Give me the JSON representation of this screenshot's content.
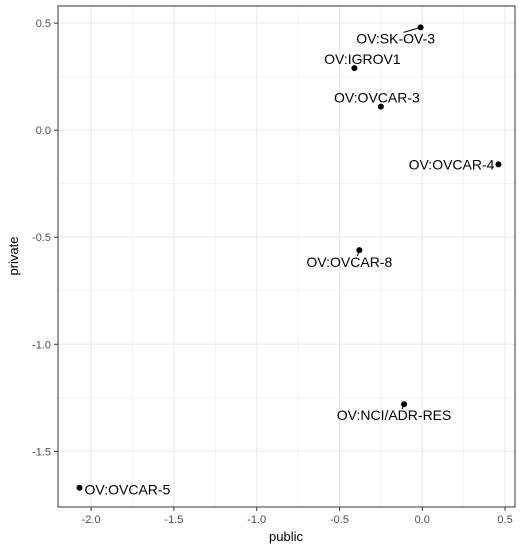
{
  "chart_data": {
    "type": "scatter",
    "title": "",
    "xlabel": "public",
    "ylabel": "private",
    "xlim": [
      -2.2,
      0.56
    ],
    "ylim": [
      -1.76,
      0.58
    ],
    "x_ticks": [
      -2.0,
      -1.5,
      -1.0,
      -0.5,
      0.0,
      0.5
    ],
    "x_tick_labels": [
      "-2.0",
      "-1.5",
      "-1.0",
      "-0.5",
      "0.0",
      "0.5"
    ],
    "y_ticks": [
      0.5,
      0.0,
      -0.5,
      -1.0,
      -1.5
    ],
    "y_tick_labels": [
      "0.5",
      "0.0",
      "-0.5",
      "-1.0",
      "-1.5"
    ],
    "grid": true,
    "points": [
      {
        "label": "OV:SK-OV-3",
        "x": -0.01,
        "y": 0.48
      },
      {
        "label": "OV:IGROV1",
        "x": -0.41,
        "y": 0.29
      },
      {
        "label": "OV:OVCAR-3",
        "x": -0.25,
        "y": 0.11
      },
      {
        "label": "OV:OVCAR-4",
        "x": 0.46,
        "y": -0.16
      },
      {
        "label": "OV:OVCAR-8",
        "x": -0.38,
        "y": -0.56
      },
      {
        "label": "OV:NCI/ADR-RES",
        "x": -0.11,
        "y": -1.28
      },
      {
        "label": "OV:OVCAR-5",
        "x": -2.07,
        "y": -1.67
      }
    ]
  }
}
